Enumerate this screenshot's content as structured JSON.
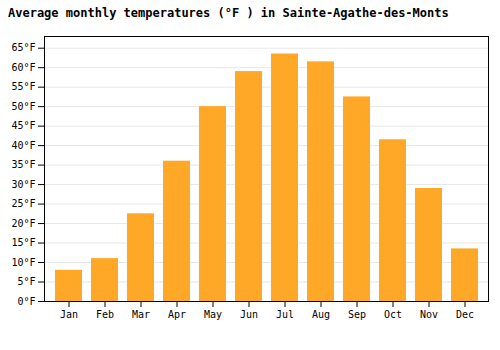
{
  "chart_data": {
    "type": "bar",
    "title": "Average monthly temperatures (°F ) in Sainte-Agathe-des-Monts",
    "categories": [
      "Jan",
      "Feb",
      "Mar",
      "Apr",
      "May",
      "Jun",
      "Jul",
      "Aug",
      "Sep",
      "Oct",
      "Nov",
      "Dec"
    ],
    "values": [
      8,
      11,
      22.5,
      36,
      50,
      59,
      63.5,
      61.5,
      52.5,
      41.5,
      29,
      13.5
    ],
    "color": "#FFA726",
    "ylim": [
      0,
      68
    ],
    "yticks": [
      {
        "value": 0,
        "label": "0°F"
      },
      {
        "value": 5,
        "label": "5°F"
      },
      {
        "value": 10,
        "label": "10°F"
      },
      {
        "value": 15,
        "label": "15°F"
      },
      {
        "value": 20,
        "label": "20°F"
      },
      {
        "value": 25,
        "label": "25°F"
      },
      {
        "value": 30,
        "label": "30°F"
      },
      {
        "value": 35,
        "label": "35°F"
      },
      {
        "value": 40,
        "label": "40°F"
      },
      {
        "value": 45,
        "label": "45°F"
      },
      {
        "value": 50,
        "label": "50°F"
      },
      {
        "value": 55,
        "label": "55°F"
      },
      {
        "value": 60,
        "label": "60°F"
      },
      {
        "value": 65,
        "label": "65°F"
      }
    ],
    "grid": true
  }
}
